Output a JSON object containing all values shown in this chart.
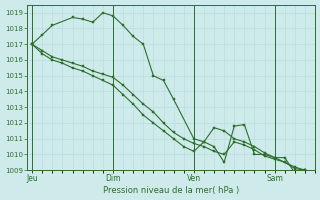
{
  "bg_color": "#ceeaea",
  "grid_color": "#b8dede",
  "line_color": "#2d6e2d",
  "marker_color": "#2d6e2d",
  "title": "Pression niveau de la mer( hPa )",
  "ylim": [
    1009,
    1019.5
  ],
  "yticks": [
    1009,
    1010,
    1011,
    1012,
    1013,
    1014,
    1015,
    1016,
    1017,
    1018,
    1019
  ],
  "day_labels": [
    "Jeu",
    "Dim",
    "Ven",
    "Sam"
  ],
  "day_positions": [
    0,
    8,
    16,
    24
  ],
  "xlim": [
    -0.5,
    28
  ],
  "series1": {
    "x": [
      0,
      1,
      2,
      4,
      5,
      6,
      7,
      8,
      9,
      10,
      11,
      12,
      13,
      14,
      16,
      17,
      18,
      19,
      20,
      21,
      22,
      23,
      24,
      25,
      26,
      27
    ],
    "y": [
      1017.0,
      1017.6,
      1018.2,
      1018.7,
      1018.6,
      1018.4,
      1019.0,
      1018.8,
      1018.2,
      1017.5,
      1017.0,
      1015.0,
      1014.7,
      1013.5,
      1011.0,
      1010.8,
      1010.5,
      1009.5,
      1011.8,
      1011.9,
      1010.0,
      1010.0,
      1009.8,
      1009.8,
      1008.8,
      1009.0
    ]
  },
  "series2": {
    "x": [
      0,
      1,
      2,
      3,
      4,
      5,
      6,
      7,
      8,
      9,
      10,
      11,
      12,
      13,
      14,
      15,
      16,
      17,
      18,
      19,
      20,
      21,
      22,
      23,
      24,
      25,
      26,
      27
    ],
    "y": [
      1017.0,
      1016.6,
      1016.2,
      1016.0,
      1015.8,
      1015.6,
      1015.3,
      1015.1,
      1014.9,
      1014.4,
      1013.8,
      1013.2,
      1012.7,
      1012.0,
      1011.4,
      1011.0,
      1010.7,
      1010.5,
      1010.2,
      1010.0,
      1010.8,
      1010.6,
      1010.3,
      1009.9,
      1009.7,
      1009.5,
      1009.1,
      1009.0
    ]
  },
  "series3": {
    "x": [
      0,
      1,
      2,
      3,
      4,
      5,
      6,
      7,
      8,
      9,
      10,
      11,
      12,
      13,
      14,
      15,
      16,
      17,
      18,
      19,
      20,
      21,
      22,
      23,
      24,
      25,
      26,
      27
    ],
    "y": [
      1017.0,
      1016.4,
      1016.0,
      1015.8,
      1015.5,
      1015.3,
      1015.0,
      1014.7,
      1014.4,
      1013.8,
      1013.2,
      1012.5,
      1012.0,
      1011.5,
      1011.0,
      1010.5,
      1010.2,
      1010.8,
      1011.7,
      1011.5,
      1011.0,
      1010.8,
      1010.5,
      1010.1,
      1009.8,
      1009.5,
      1009.2,
      1009.0
    ]
  }
}
